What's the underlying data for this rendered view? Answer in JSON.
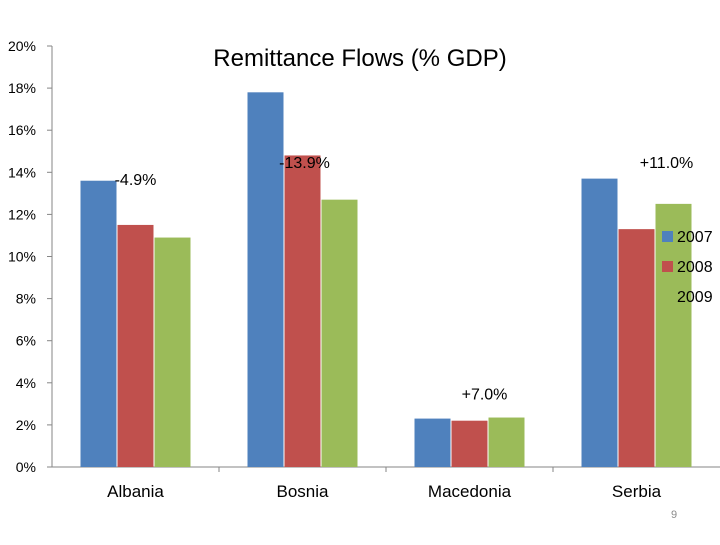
{
  "chart_data": {
    "type": "bar",
    "title": "Remittance Flows (% GDP)",
    "xlabel": "",
    "ylabel": "",
    "categories": [
      "Albania",
      "Bosnia",
      "Macedonia",
      "Serbia"
    ],
    "series": [
      {
        "name": "2007",
        "color": "#4f81bd",
        "values": [
          13.6,
          17.8,
          2.3,
          13.7
        ]
      },
      {
        "name": "2008",
        "color": "#c0504d",
        "values": [
          11.5,
          14.8,
          2.2,
          11.3
        ]
      },
      {
        "name": "2009",
        "color": "#9bbb59",
        "values": [
          10.9,
          12.7,
          2.35,
          12.5
        ]
      }
    ],
    "ylim": [
      0,
      20
    ],
    "yticks": [
      0,
      2,
      4,
      6,
      8,
      10,
      12,
      14,
      16,
      18,
      20
    ],
    "ytick_labels": [
      "0%",
      "2%",
      "4%",
      "6%",
      "8%",
      "10%",
      "12%",
      "14%",
      "16%",
      "18%",
      "20%"
    ],
    "grid": false,
    "legend_position": "right",
    "annotations": [
      {
        "text": "-4.9%",
        "category": "Albania"
      },
      {
        "text": "-13.9%",
        "category": "Bosnia"
      },
      {
        "text": "+7.0%",
        "category": "Macedonia"
      },
      {
        "text": "+11.0%",
        "category": "Serbia"
      }
    ]
  },
  "page_number": "9"
}
